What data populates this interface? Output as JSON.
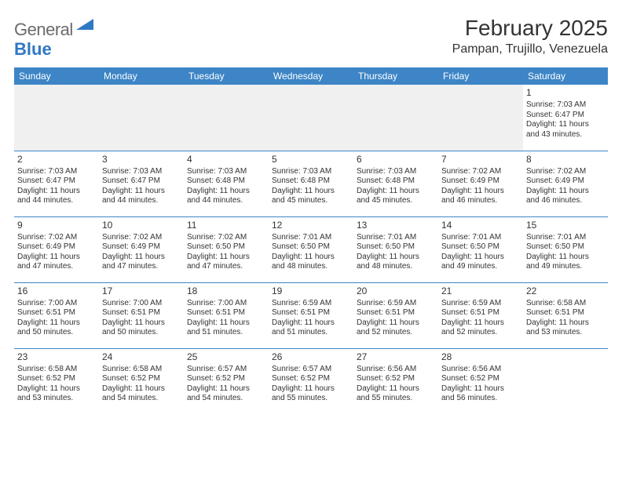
{
  "logo": {
    "text1": "General",
    "text2": "Blue"
  },
  "header": {
    "title": "February 2025",
    "location": "Pampan, Trujillo, Venezuela"
  },
  "colors": {
    "accent": "#3d85c6",
    "text": "#333333",
    "blank": "#f0f0f0"
  },
  "weekdays": [
    "Sunday",
    "Monday",
    "Tuesday",
    "Wednesday",
    "Thursday",
    "Friday",
    "Saturday"
  ],
  "weeks": [
    [
      null,
      null,
      null,
      null,
      null,
      null,
      {
        "n": "1",
        "sr": "Sunrise: 7:03 AM",
        "ss": "Sunset: 6:47 PM",
        "d1": "Daylight: 11 hours",
        "d2": "and 43 minutes."
      }
    ],
    [
      {
        "n": "2",
        "sr": "Sunrise: 7:03 AM",
        "ss": "Sunset: 6:47 PM",
        "d1": "Daylight: 11 hours",
        "d2": "and 44 minutes."
      },
      {
        "n": "3",
        "sr": "Sunrise: 7:03 AM",
        "ss": "Sunset: 6:47 PM",
        "d1": "Daylight: 11 hours",
        "d2": "and 44 minutes."
      },
      {
        "n": "4",
        "sr": "Sunrise: 7:03 AM",
        "ss": "Sunset: 6:48 PM",
        "d1": "Daylight: 11 hours",
        "d2": "and 44 minutes."
      },
      {
        "n": "5",
        "sr": "Sunrise: 7:03 AM",
        "ss": "Sunset: 6:48 PM",
        "d1": "Daylight: 11 hours",
        "d2": "and 45 minutes."
      },
      {
        "n": "6",
        "sr": "Sunrise: 7:03 AM",
        "ss": "Sunset: 6:48 PM",
        "d1": "Daylight: 11 hours",
        "d2": "and 45 minutes."
      },
      {
        "n": "7",
        "sr": "Sunrise: 7:02 AM",
        "ss": "Sunset: 6:49 PM",
        "d1": "Daylight: 11 hours",
        "d2": "and 46 minutes."
      },
      {
        "n": "8",
        "sr": "Sunrise: 7:02 AM",
        "ss": "Sunset: 6:49 PM",
        "d1": "Daylight: 11 hours",
        "d2": "and 46 minutes."
      }
    ],
    [
      {
        "n": "9",
        "sr": "Sunrise: 7:02 AM",
        "ss": "Sunset: 6:49 PM",
        "d1": "Daylight: 11 hours",
        "d2": "and 47 minutes."
      },
      {
        "n": "10",
        "sr": "Sunrise: 7:02 AM",
        "ss": "Sunset: 6:49 PM",
        "d1": "Daylight: 11 hours",
        "d2": "and 47 minutes."
      },
      {
        "n": "11",
        "sr": "Sunrise: 7:02 AM",
        "ss": "Sunset: 6:50 PM",
        "d1": "Daylight: 11 hours",
        "d2": "and 47 minutes."
      },
      {
        "n": "12",
        "sr": "Sunrise: 7:01 AM",
        "ss": "Sunset: 6:50 PM",
        "d1": "Daylight: 11 hours",
        "d2": "and 48 minutes."
      },
      {
        "n": "13",
        "sr": "Sunrise: 7:01 AM",
        "ss": "Sunset: 6:50 PM",
        "d1": "Daylight: 11 hours",
        "d2": "and 48 minutes."
      },
      {
        "n": "14",
        "sr": "Sunrise: 7:01 AM",
        "ss": "Sunset: 6:50 PM",
        "d1": "Daylight: 11 hours",
        "d2": "and 49 minutes."
      },
      {
        "n": "15",
        "sr": "Sunrise: 7:01 AM",
        "ss": "Sunset: 6:50 PM",
        "d1": "Daylight: 11 hours",
        "d2": "and 49 minutes."
      }
    ],
    [
      {
        "n": "16",
        "sr": "Sunrise: 7:00 AM",
        "ss": "Sunset: 6:51 PM",
        "d1": "Daylight: 11 hours",
        "d2": "and 50 minutes."
      },
      {
        "n": "17",
        "sr": "Sunrise: 7:00 AM",
        "ss": "Sunset: 6:51 PM",
        "d1": "Daylight: 11 hours",
        "d2": "and 50 minutes."
      },
      {
        "n": "18",
        "sr": "Sunrise: 7:00 AM",
        "ss": "Sunset: 6:51 PM",
        "d1": "Daylight: 11 hours",
        "d2": "and 51 minutes."
      },
      {
        "n": "19",
        "sr": "Sunrise: 6:59 AM",
        "ss": "Sunset: 6:51 PM",
        "d1": "Daylight: 11 hours",
        "d2": "and 51 minutes."
      },
      {
        "n": "20",
        "sr": "Sunrise: 6:59 AM",
        "ss": "Sunset: 6:51 PM",
        "d1": "Daylight: 11 hours",
        "d2": "and 52 minutes."
      },
      {
        "n": "21",
        "sr": "Sunrise: 6:59 AM",
        "ss": "Sunset: 6:51 PM",
        "d1": "Daylight: 11 hours",
        "d2": "and 52 minutes."
      },
      {
        "n": "22",
        "sr": "Sunrise: 6:58 AM",
        "ss": "Sunset: 6:51 PM",
        "d1": "Daylight: 11 hours",
        "d2": "and 53 minutes."
      }
    ],
    [
      {
        "n": "23",
        "sr": "Sunrise: 6:58 AM",
        "ss": "Sunset: 6:52 PM",
        "d1": "Daylight: 11 hours",
        "d2": "and 53 minutes."
      },
      {
        "n": "24",
        "sr": "Sunrise: 6:58 AM",
        "ss": "Sunset: 6:52 PM",
        "d1": "Daylight: 11 hours",
        "d2": "and 54 minutes."
      },
      {
        "n": "25",
        "sr": "Sunrise: 6:57 AM",
        "ss": "Sunset: 6:52 PM",
        "d1": "Daylight: 11 hours",
        "d2": "and 54 minutes."
      },
      {
        "n": "26",
        "sr": "Sunrise: 6:57 AM",
        "ss": "Sunset: 6:52 PM",
        "d1": "Daylight: 11 hours",
        "d2": "and 55 minutes."
      },
      {
        "n": "27",
        "sr": "Sunrise: 6:56 AM",
        "ss": "Sunset: 6:52 PM",
        "d1": "Daylight: 11 hours",
        "d2": "and 55 minutes."
      },
      {
        "n": "28",
        "sr": "Sunrise: 6:56 AM",
        "ss": "Sunset: 6:52 PM",
        "d1": "Daylight: 11 hours",
        "d2": "and 56 minutes."
      },
      null
    ]
  ]
}
